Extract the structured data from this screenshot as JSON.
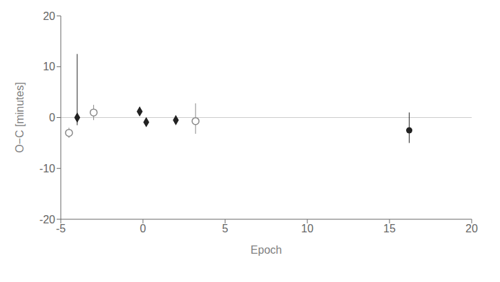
{
  "chart_data": {
    "type": "scatter",
    "title": "",
    "xlabel": "Epoch",
    "ylabel": "O−C [minutes]",
    "xlim": [
      -5,
      20
    ],
    "ylim": [
      -20,
      20
    ],
    "xticks": [
      -5,
      0,
      5,
      10,
      15,
      20
    ],
    "yticks": [
      -20,
      -10,
      0,
      10,
      20
    ],
    "grid": false,
    "hline_y": 0,
    "series": [
      {
        "marker": "open_circle",
        "color": "#888888",
        "x": [
          -4.5,
          -3.0,
          3.2
        ],
        "y": [
          -3.0,
          1.0,
          -0.7
        ],
        "yerr_lo": [
          1.0,
          1.5,
          2.5
        ],
        "yerr_hi": [
          1.0,
          1.5,
          3.5
        ]
      },
      {
        "marker": "diamond",
        "color": "#222222",
        "x": [
          -4.0,
          -0.2,
          0.2,
          2.0
        ],
        "y": [
          0.0,
          1.2,
          -0.9,
          -0.5
        ],
        "yerr_lo": [
          1.5,
          0.8,
          0.7,
          0.5
        ],
        "yerr_hi": [
          12.5,
          0.8,
          0.7,
          0.5
        ]
      },
      {
        "marker": "circle",
        "color": "#222222",
        "x": [
          16.2
        ],
        "y": [
          -2.5
        ],
        "yerr_lo": [
          2.5
        ],
        "yerr_hi": [
          3.5
        ]
      }
    ]
  }
}
